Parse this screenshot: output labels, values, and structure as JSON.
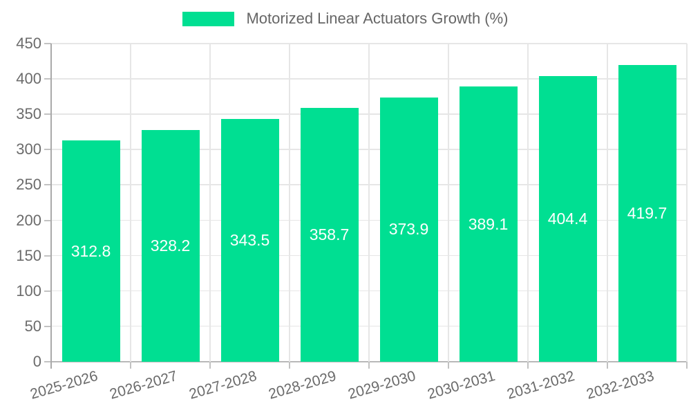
{
  "chart_data": {
    "type": "bar",
    "title": "Motorized Linear Actuators Growth (%)",
    "legend": {
      "position": "top",
      "entries": [
        "Motorized Linear Actuators Growth (%)"
      ]
    },
    "categories": [
      "2025-2026",
      "2026-2027",
      "2027-2028",
      "2028-2029",
      "2029-2030",
      "2030-2031",
      "2031-2032",
      "2032-2033"
    ],
    "values": [
      312.8,
      328.2,
      343.5,
      358.7,
      373.9,
      389.1,
      404.4,
      419.7
    ],
    "xlabel": "",
    "ylabel": "",
    "ylim": [
      0,
      450
    ],
    "yticks": [
      0,
      50,
      100,
      150,
      200,
      250,
      300,
      350,
      400,
      450
    ],
    "grid": true,
    "colors": {
      "bar": "#00DF92",
      "value_label": "#ffffff",
      "axis_text": "#6b6b6b",
      "legend_text": "#666666",
      "gridline": "#e6e6e6",
      "tick": "#c2c2c2",
      "axis_line": "#a9a9a9",
      "zero_line": "#b8b8b8",
      "background": "#ffffff"
    }
  }
}
